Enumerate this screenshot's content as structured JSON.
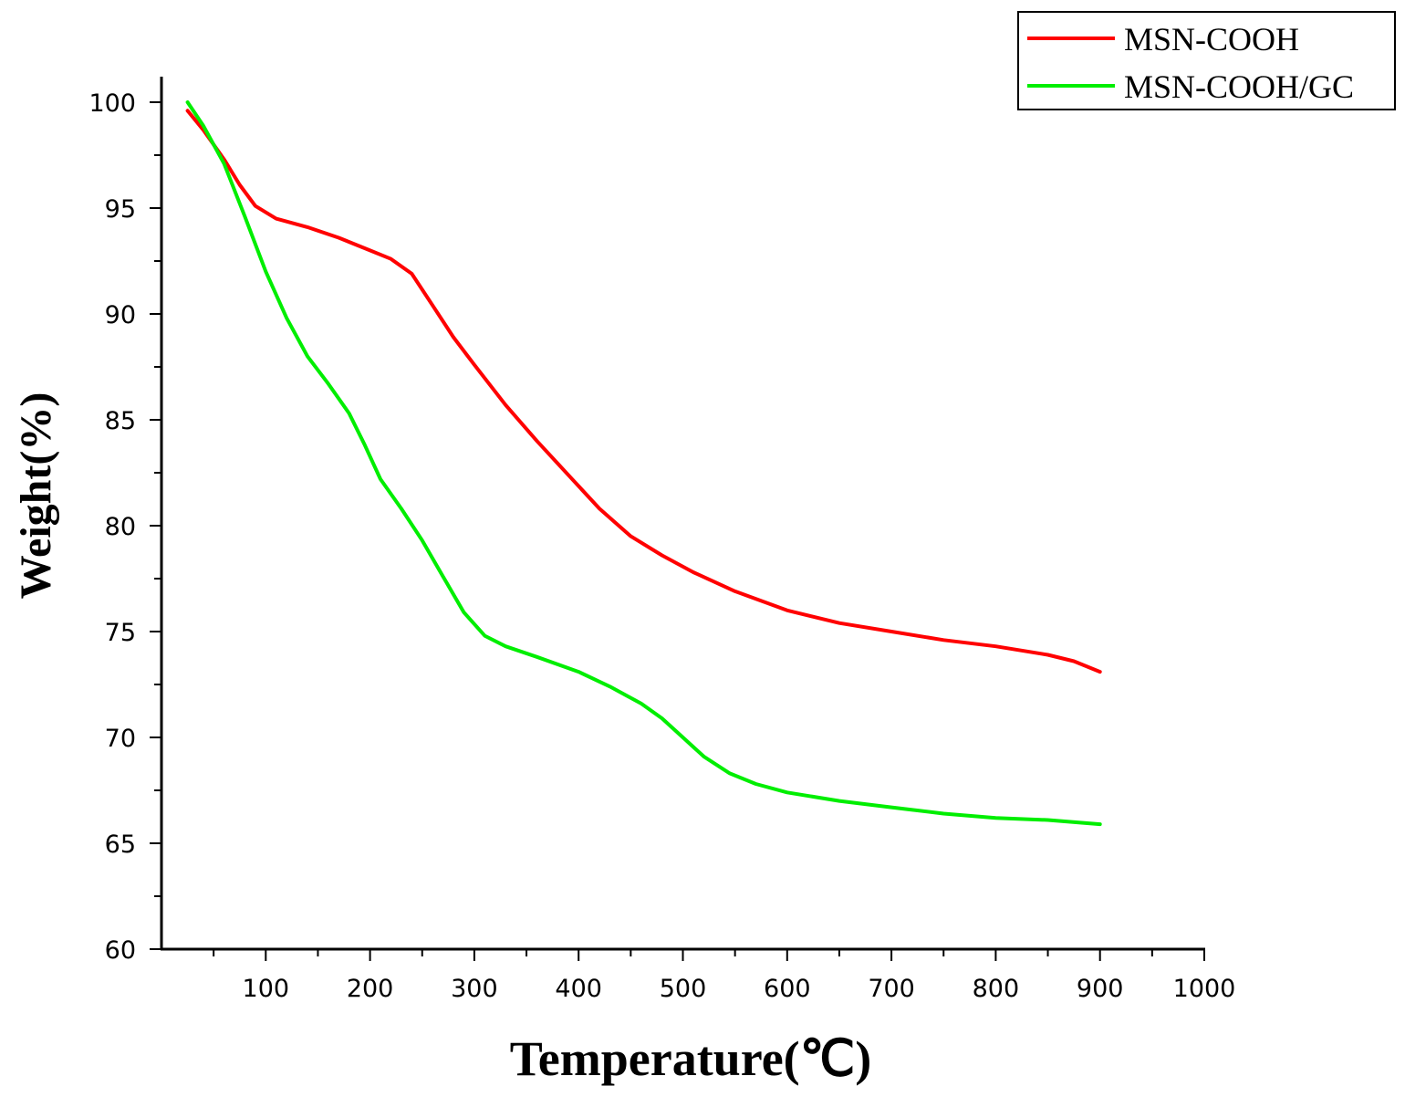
{
  "chart_data": {
    "type": "line",
    "title": "",
    "xlabel": "Temperature(℃)",
    "ylabel": "Weight(%)",
    "xlim": [
      0,
      1000
    ],
    "ylim": [
      60,
      100
    ],
    "x_ticks": [
      100,
      200,
      300,
      400,
      500,
      600,
      700,
      800,
      900,
      1000
    ],
    "y_ticks": [
      60,
      65,
      70,
      75,
      80,
      85,
      90,
      95,
      100
    ],
    "grid": false,
    "legend_position": "top-right",
    "series": [
      {
        "name": "MSN-COOH",
        "color": "#ff0000",
        "x": [
          25,
          40,
          60,
          75,
          90,
          110,
          140,
          170,
          200,
          220,
          240,
          260,
          280,
          300,
          330,
          360,
          390,
          420,
          450,
          480,
          510,
          550,
          600,
          650,
          700,
          750,
          800,
          850,
          875,
          900
        ],
        "y": [
          99.6,
          98.7,
          97.3,
          96.1,
          95.1,
          94.5,
          94.1,
          93.6,
          93.0,
          92.6,
          91.9,
          90.4,
          88.9,
          87.6,
          85.7,
          84.0,
          82.4,
          80.8,
          79.5,
          78.6,
          77.8,
          76.9,
          76.0,
          75.4,
          75.0,
          74.6,
          74.3,
          73.9,
          73.6,
          73.1
        ]
      },
      {
        "name": "MSN-COOH/GC",
        "color": "#00ee00",
        "x": [
          25,
          40,
          60,
          80,
          100,
          120,
          140,
          160,
          180,
          195,
          210,
          230,
          250,
          270,
          290,
          310,
          330,
          360,
          400,
          430,
          460,
          480,
          500,
          520,
          545,
          570,
          600,
          650,
          700,
          750,
          800,
          850,
          900
        ],
        "y": [
          100,
          98.9,
          97.1,
          94.6,
          92.0,
          89.8,
          88.0,
          86.7,
          85.3,
          83.8,
          82.2,
          80.8,
          79.3,
          77.6,
          75.9,
          74.8,
          74.3,
          73.8,
          73.1,
          72.4,
          71.6,
          70.9,
          70.0,
          69.1,
          68.3,
          67.8,
          67.4,
          67.0,
          66.7,
          66.4,
          66.2,
          66.1,
          65.9
        ]
      }
    ]
  }
}
